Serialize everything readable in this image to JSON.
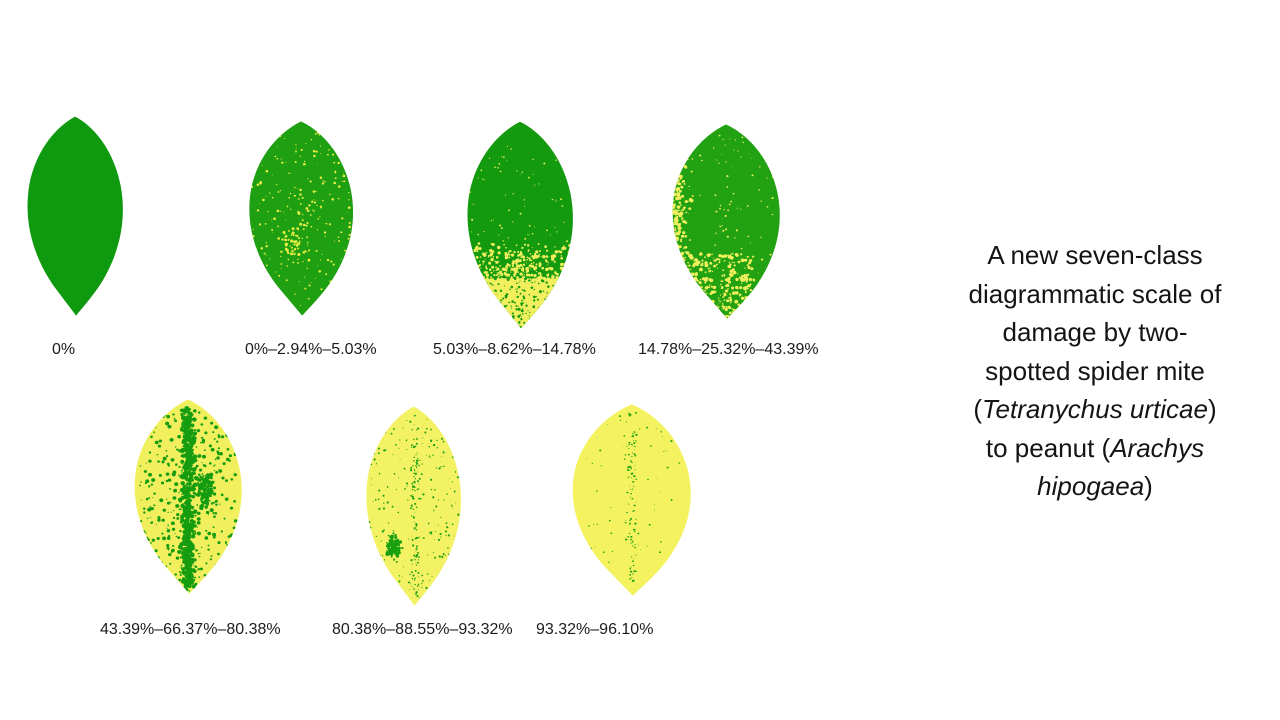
{
  "page": {
    "background": "#ffffff"
  },
  "figure": {
    "caption_text": "A new seven-class diagrammatic scale of damage by two-spotted spider mite (Tetranychus urticae) to peanut (Arachys hipogaea)",
    "caption_lines": [
      [
        {
          "text": "A new seven-class"
        }
      ],
      [
        {
          "text": "diagrammatic scale of"
        }
      ],
      [
        {
          "text": "damage by two-"
        }
      ],
      [
        {
          "text": "spotted spider mite"
        }
      ],
      [
        {
          "text": "("
        },
        {
          "text": "Tetranychus urticae",
          "italic": true
        },
        {
          "text": ")"
        }
      ],
      [
        {
          "text": "to peanut ("
        },
        {
          "text": "Arachys",
          "italic": true
        }
      ],
      [
        {
          "text": "hipogaea",
          "italic": true
        },
        {
          "text": ")"
        }
      ]
    ],
    "classes": [
      {
        "label": "0%",
        "pattern": "solid",
        "colors": {
          "base": "#0f990f",
          "damage": "#f1ef5e"
        }
      },
      {
        "label": "0%–2.94%–5.03%",
        "pattern": "speckle-yellow",
        "colors": {
          "base": "#1f9f12",
          "damage": "#e8ee44"
        }
      },
      {
        "label": "5.03%–8.62%–14.78%",
        "pattern": "bottom-band",
        "colors": {
          "base": "#149a0e",
          "damage": "#f1ef5e"
        }
      },
      {
        "label": "14.78%–25.32%–43.39%",
        "pattern": "left-edge",
        "colors": {
          "base": "#22a212",
          "damage": "#f1ef5e"
        }
      },
      {
        "label": "43.39%–66.37%–80.38%",
        "pattern": "midrib-dense",
        "colors": {
          "base": "#f1ef5e",
          "damage": "#169c10"
        }
      },
      {
        "label": "80.38%–88.55%–93.32%",
        "pattern": "speckle-green",
        "colors": {
          "base": "#f3f164",
          "damage": "#18a011"
        }
      },
      {
        "label": "93.32%–96.10%",
        "pattern": "dots-sparse",
        "colors": {
          "base": "#f4f35f",
          "damage": "#1ba312"
        }
      }
    ]
  }
}
